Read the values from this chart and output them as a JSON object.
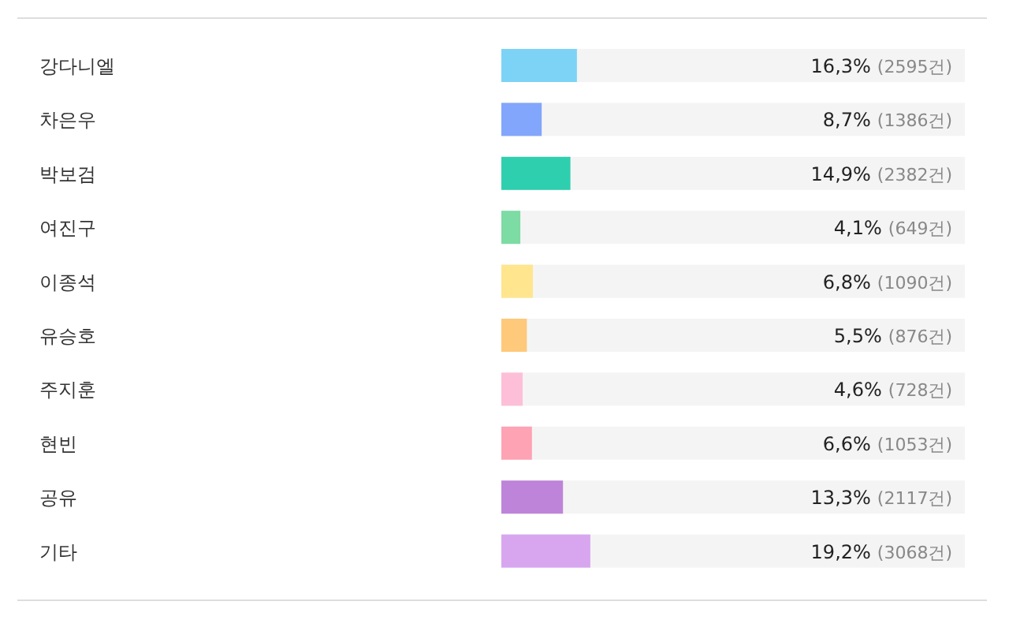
{
  "chart_data": {
    "type": "bar",
    "orientation": "horizontal",
    "categories": [
      "강다니엘",
      "차은우",
      "박보검",
      "여진구",
      "이종석",
      "유승호",
      "주지훈",
      "현빈",
      "공유",
      "기타"
    ],
    "values": [
      16.3,
      8.7,
      14.9,
      4.1,
      6.8,
      5.5,
      4.6,
      6.6,
      13.3,
      19.2
    ],
    "colors": [
      "#7dd3f5",
      "#82a6fb",
      "#2ecfae",
      "#7ddba4",
      "#ffe58e",
      "#fec97a",
      "#fdbfd7",
      "#fea3b4",
      "#be84d9",
      "#d8a6ef"
    ],
    "value_labels": [
      "16,3% (2595건)",
      "8,7% (1386건)",
      "14,9% (2382건)",
      "4,1% (649건)",
      "6,8% (1090건)",
      "5,5% (876건)",
      "4,6% (728건)",
      "6,6% (1053건)",
      "13,3% (2117건)",
      "19,2% (3068건)"
    ],
    "xlim": [
      0,
      100
    ],
    "tick_labels": false
  }
}
